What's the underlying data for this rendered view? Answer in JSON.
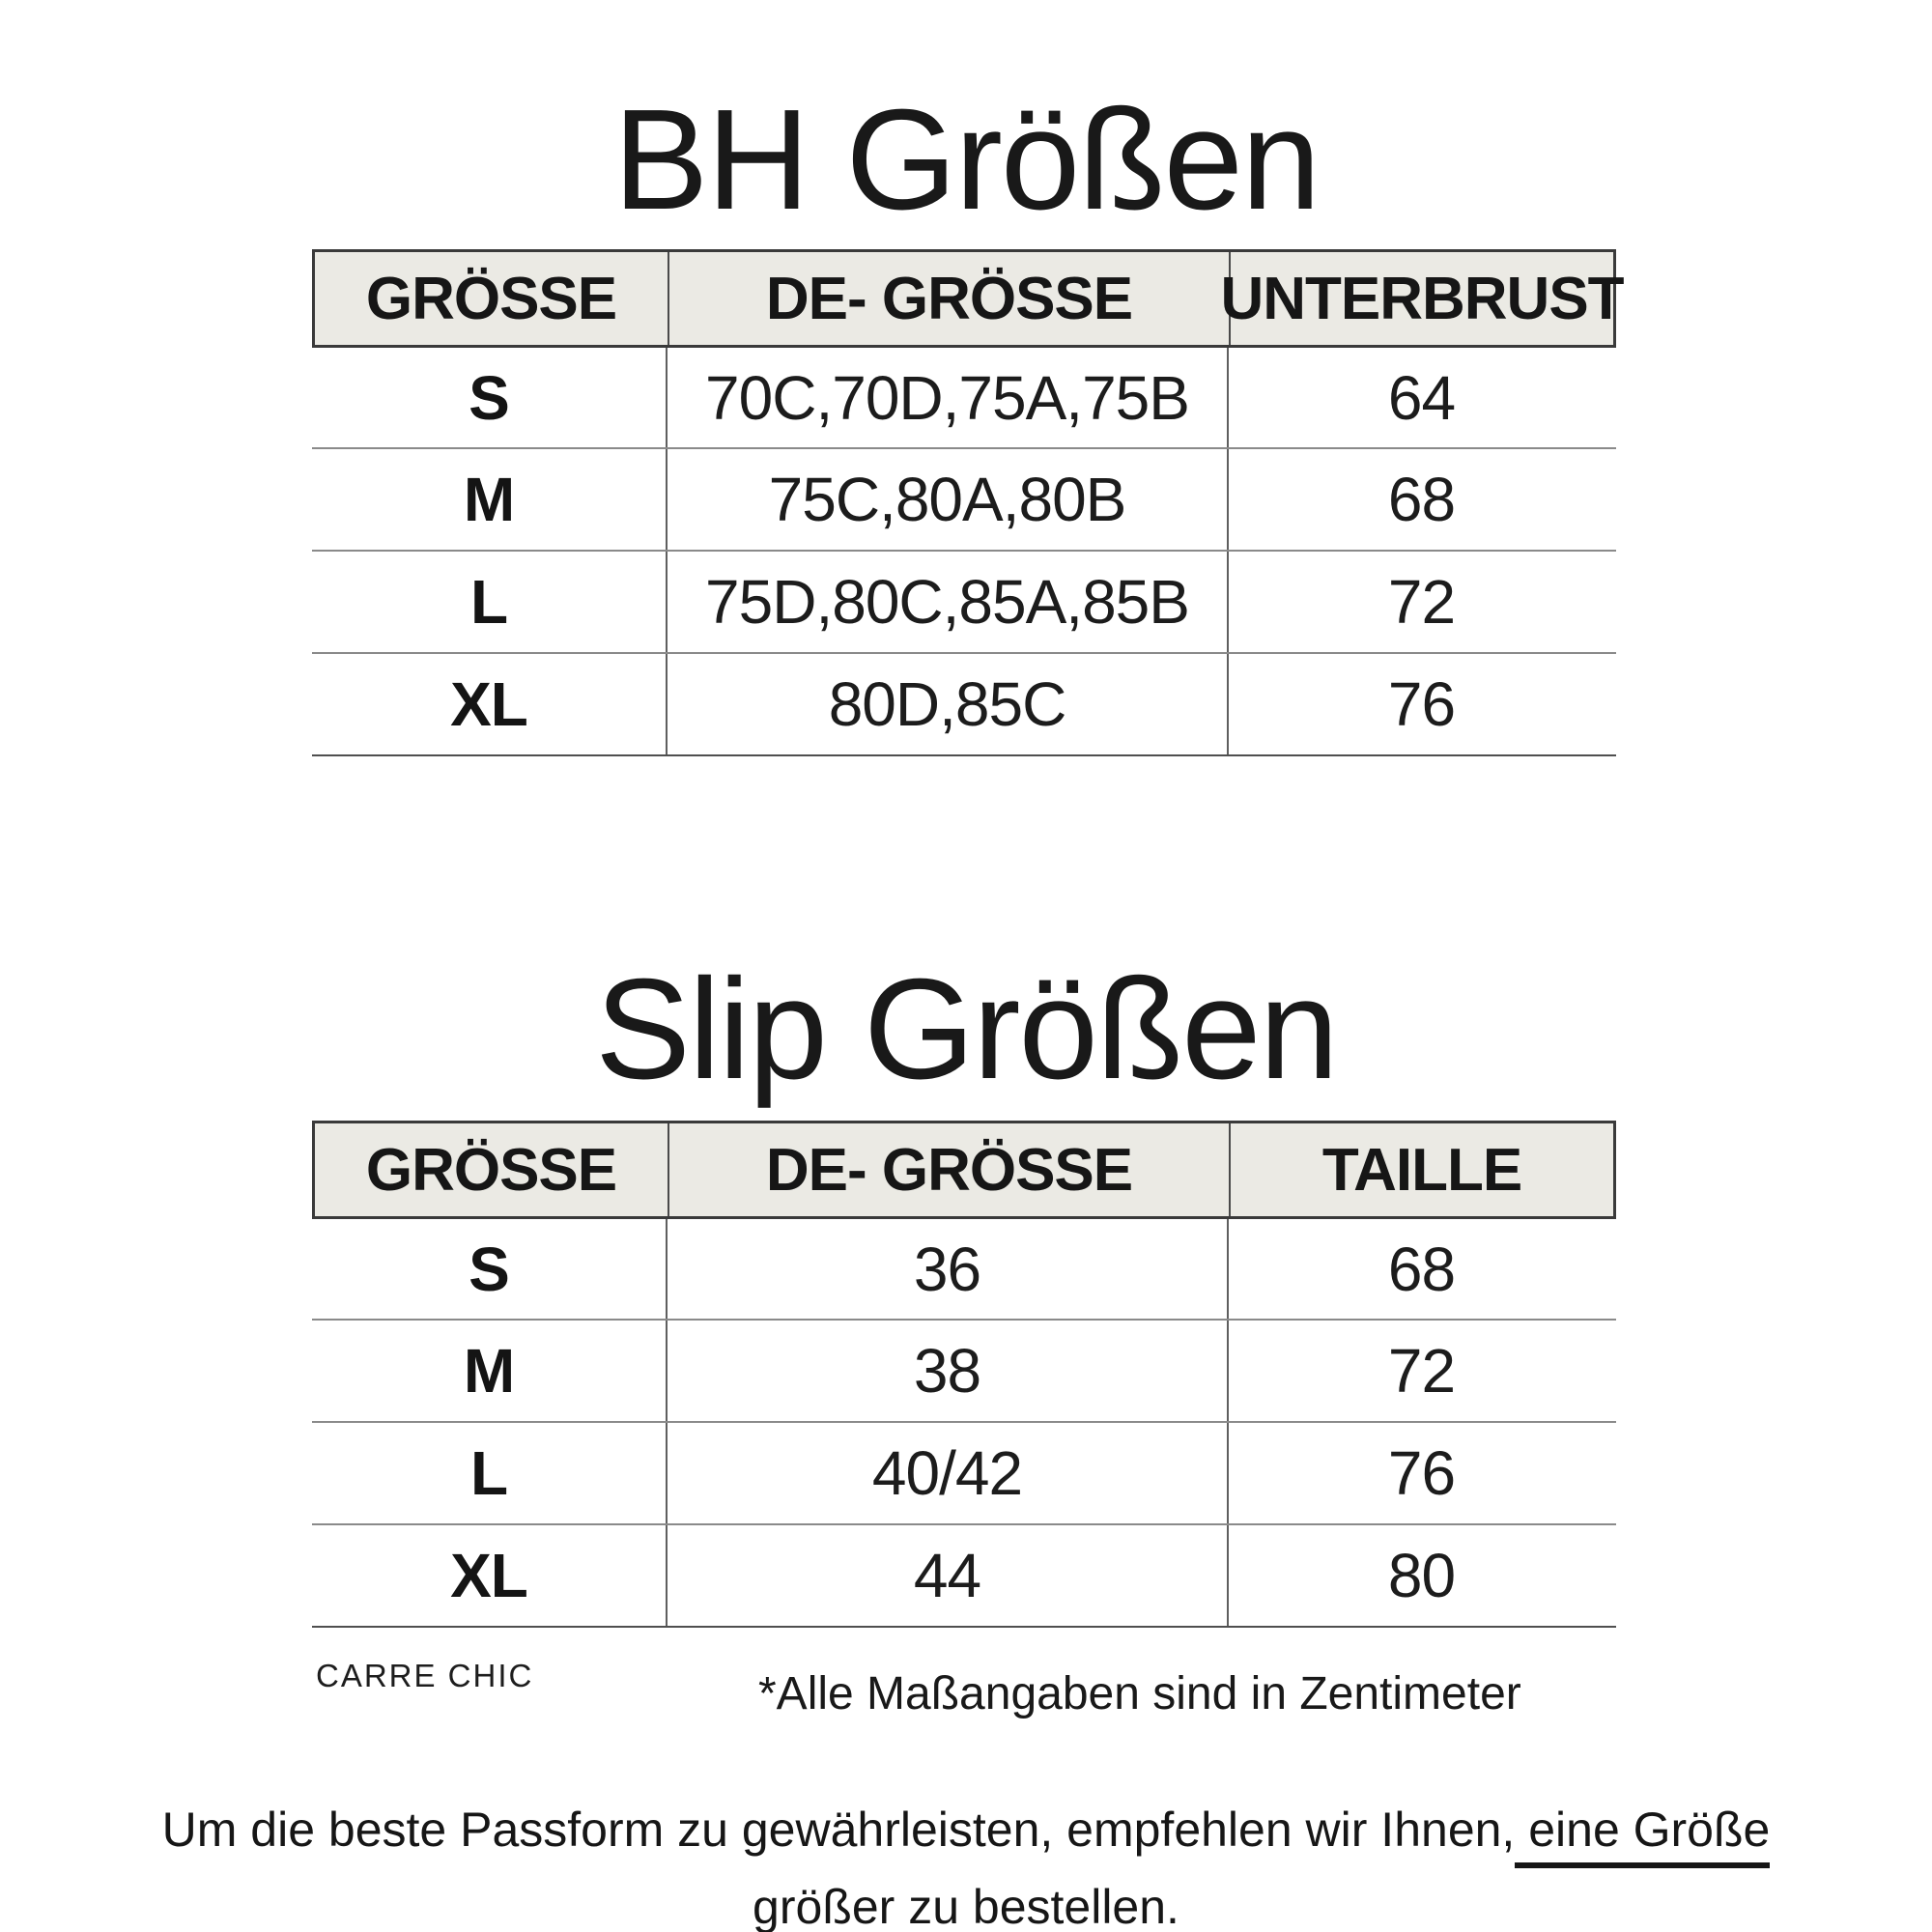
{
  "titles": {
    "bh": "BH Größen",
    "slip": "Slip Größen"
  },
  "bh_table": {
    "headers": [
      "GRÖSSE",
      "DE- GRÖSSE",
      "UNTERBRUST"
    ],
    "rows": [
      {
        "size": "S",
        "de": "70C,70D,75A,75B",
        "measure": "64"
      },
      {
        "size": "M",
        "de": "75C,80A,80B",
        "measure": "68"
      },
      {
        "size": "L",
        "de": "75D,80C,85A,85B",
        "measure": "72"
      },
      {
        "size": "XL",
        "de": "80D,85C",
        "measure": "76"
      }
    ]
  },
  "slip_table": {
    "headers": [
      "GRÖSSE",
      "DE- GRÖSSE",
      "TAILLE"
    ],
    "rows": [
      {
        "size": "S",
        "de": "36",
        "measure": "68"
      },
      {
        "size": "M",
        "de": "38",
        "measure": "72"
      },
      {
        "size": "L",
        "de": "40/42",
        "measure": "76"
      },
      {
        "size": "XL",
        "de": "44",
        "measure": "80"
      }
    ]
  },
  "brand": "CARRE CHIC",
  "footnote": "*Alle Maßangaben sind in Zentimeter",
  "advice": {
    "prefix": "Um die beste Passform zu gewährleisten, empfehlen wir Ihnen,",
    "underlined_line1": " eine Größe",
    "underlined_line2": "größer zu bestellen."
  },
  "colors": {
    "background": "#ffffff",
    "header_background": "#ebeae4",
    "header_border": "#3a3a3a",
    "row_line": "#8a8a8a",
    "column_line": "#5f5f5f",
    "text": "#1a1a1a"
  }
}
